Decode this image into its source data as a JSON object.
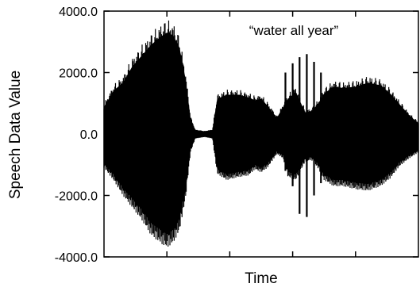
{
  "chart_data": {
    "type": "line",
    "title": "",
    "annotation": "“water all year”",
    "xlabel": "Time",
    "ylabel": "Speech Data Value",
    "ylim": [
      -4000,
      4000
    ],
    "yticks": [
      {
        "value": 4000,
        "label": "4000.0"
      },
      {
        "value": 2000,
        "label": "2000.0"
      },
      {
        "value": 0,
        "label": "0.0"
      },
      {
        "value": -2000,
        "label": "-2000.0"
      },
      {
        "value": -4000,
        "label": "-4000.0"
      }
    ],
    "xlim": [
      0,
      1
    ],
    "xticks": [
      0.2,
      0.4,
      0.6,
      0.8
    ],
    "grid": false,
    "series": [
      {
        "upper": [
          [
            0.0,
            1000
          ],
          [
            0.03,
            1600
          ],
          [
            0.06,
            1900
          ],
          [
            0.09,
            2500
          ],
          [
            0.12,
            2900
          ],
          [
            0.15,
            3300
          ],
          [
            0.18,
            3600
          ],
          [
            0.2,
            3750
          ],
          [
            0.22,
            3650
          ],
          [
            0.24,
            3200
          ],
          [
            0.26,
            2000
          ],
          [
            0.275,
            600
          ],
          [
            0.29,
            150
          ],
          [
            0.32,
            100
          ],
          [
            0.345,
            150
          ],
          [
            0.36,
            1300
          ],
          [
            0.39,
            1450
          ],
          [
            0.43,
            1450
          ],
          [
            0.46,
            1350
          ],
          [
            0.48,
            1250
          ],
          [
            0.5,
            1300
          ],
          [
            0.52,
            1050
          ],
          [
            0.55,
            600
          ],
          [
            0.57,
            1000
          ],
          [
            0.585,
            1300
          ],
          [
            0.61,
            1550
          ],
          [
            0.64,
            800
          ],
          [
            0.66,
            850
          ],
          [
            0.68,
            1100
          ],
          [
            0.7,
            1500
          ],
          [
            0.73,
            1750
          ],
          [
            0.76,
            1700
          ],
          [
            0.8,
            1750
          ],
          [
            0.84,
            1900
          ],
          [
            0.88,
            1800
          ],
          [
            0.91,
            1500
          ],
          [
            0.94,
            1100
          ],
          [
            0.97,
            700
          ],
          [
            1.0,
            400
          ]
        ],
        "lower": [
          [
            0.0,
            -1100
          ],
          [
            0.03,
            -1500
          ],
          [
            0.06,
            -2000
          ],
          [
            0.09,
            -2400
          ],
          [
            0.12,
            -2800
          ],
          [
            0.15,
            -3300
          ],
          [
            0.18,
            -3550
          ],
          [
            0.2,
            -3700
          ],
          [
            0.22,
            -3550
          ],
          [
            0.24,
            -3150
          ],
          [
            0.26,
            -2050
          ],
          [
            0.275,
            -600
          ],
          [
            0.29,
            -150
          ],
          [
            0.32,
            -100
          ],
          [
            0.345,
            -150
          ],
          [
            0.36,
            -1300
          ],
          [
            0.39,
            -1500
          ],
          [
            0.43,
            -1400
          ],
          [
            0.46,
            -1350
          ],
          [
            0.48,
            -1150
          ],
          [
            0.5,
            -1250
          ],
          [
            0.52,
            -1100
          ],
          [
            0.55,
            -650
          ],
          [
            0.57,
            -800
          ],
          [
            0.585,
            -1400
          ],
          [
            0.61,
            -1500
          ],
          [
            0.64,
            -900
          ],
          [
            0.66,
            -850
          ],
          [
            0.68,
            -1100
          ],
          [
            0.7,
            -1500
          ],
          [
            0.73,
            -1700
          ],
          [
            0.76,
            -1700
          ],
          [
            0.8,
            -1800
          ],
          [
            0.84,
            -1850
          ],
          [
            0.88,
            -1700
          ],
          [
            0.91,
            -1450
          ],
          [
            0.94,
            -1050
          ],
          [
            0.97,
            -800
          ],
          [
            1.0,
            -600
          ]
        ]
      }
    ],
    "spikes": [
      {
        "x": 0.577,
        "ymin": -1200,
        "ymax": 2000
      },
      {
        "x": 0.6,
        "ymin": -1700,
        "ymax": 2300
      },
      {
        "x": 0.622,
        "ymin": -2600,
        "ymax": 2500
      },
      {
        "x": 0.645,
        "ymin": -2700,
        "ymax": 2600
      },
      {
        "x": 0.668,
        "ymin": -2000,
        "ymax": 2350
      },
      {
        "x": 0.69,
        "ymin": -1600,
        "ymax": 2000
      }
    ]
  }
}
